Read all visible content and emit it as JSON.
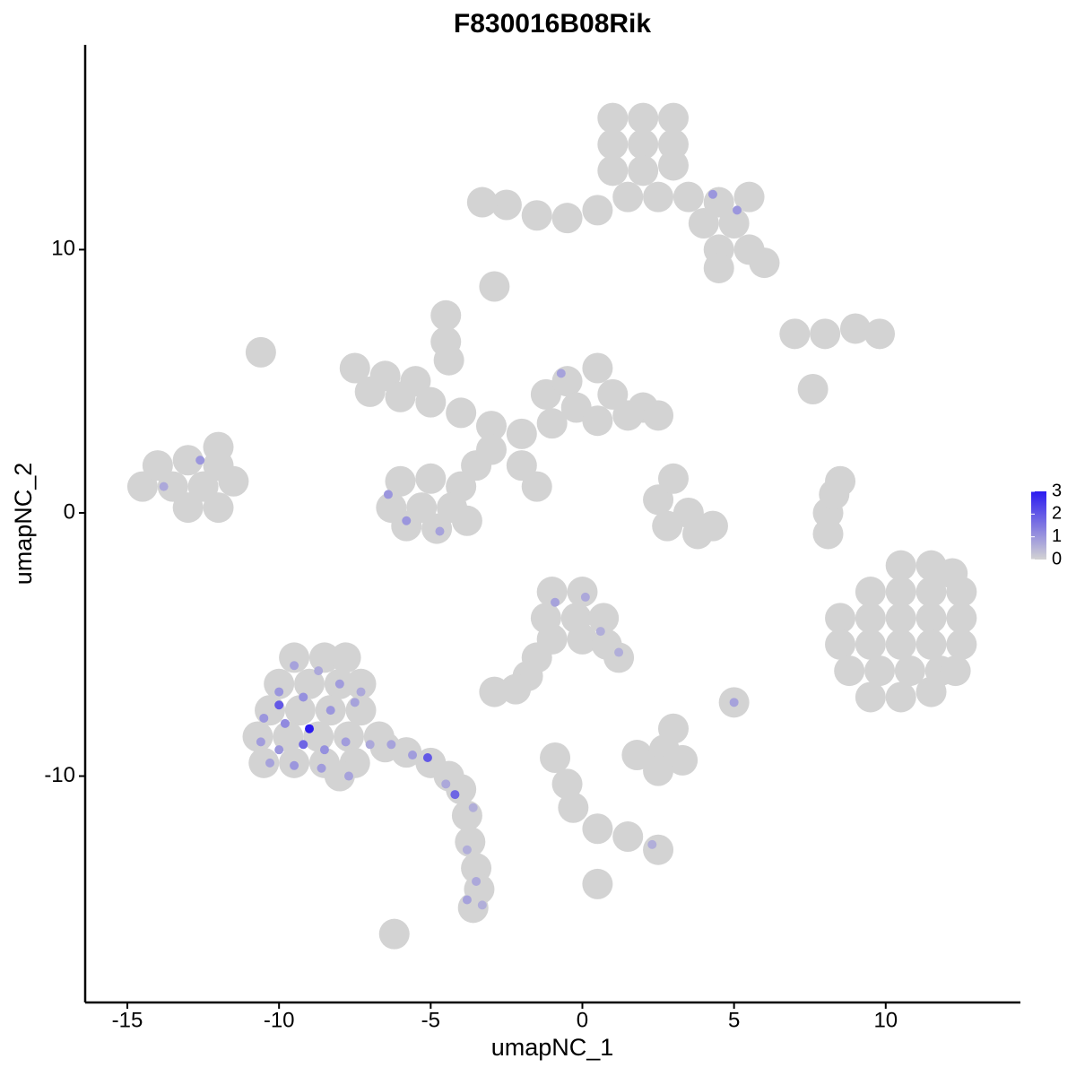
{
  "chart_data": {
    "type": "scatter",
    "title": "F830016B08Rik",
    "xlabel": "umapNC_1",
    "ylabel": "umapNC_2",
    "xlim": [
      -16.39,
      14.44
    ],
    "ylim": [
      -18.6,
      17.78
    ],
    "xticks": [
      -15,
      -10,
      -5,
      0,
      5,
      10
    ],
    "yticks": [
      -10,
      0,
      10
    ],
    "colors": [
      "#d3d3d3",
      "#2b1bf0"
    ],
    "clim": [
      0,
      3
    ],
    "colorbar_ticks": [
      0,
      1,
      2,
      3
    ],
    "grid": false,
    "x": [
      1,
      2,
      3,
      1,
      2,
      3,
      1,
      2,
      3,
      1.5,
      2.5,
      3.5,
      4.5,
      5.5,
      4,
      5,
      4.5,
      5.5,
      6,
      4.5,
      0.5,
      -0.5,
      -1.5,
      -2.5,
      -3.3,
      -7.5,
      -6.5,
      -5.5,
      -7,
      -6,
      -5,
      -4,
      -3,
      -2,
      -1.2,
      -0.5,
      0.5,
      -0.2,
      1,
      2,
      2.5,
      1.5,
      0.5,
      -1,
      -6,
      -5,
      -4,
      -6.3,
      -5.3,
      -4.3,
      -5.8,
      -4.8,
      -3.8,
      -3.5,
      -3,
      -4.5,
      -4.4,
      -2,
      -1.5,
      -14.5,
      -13.5,
      -12.5,
      -11.5,
      -14,
      -13,
      -12,
      -12,
      -13,
      -12,
      7,
      8,
      9,
      9.8,
      7.6,
      2.5,
      3.5,
      2.8,
      3.8,
      4.3,
      3,
      8.1,
      8.1,
      8.3,
      8.5,
      10.5,
      11.5,
      12.2,
      9.5,
      10.5,
      11.5,
      12.5,
      8.5,
      9.5,
      10.5,
      11.5,
      12.5,
      8.5,
      9.5,
      10.5,
      11.5,
      12.5,
      8.8,
      9.8,
      10.8,
      11.8,
      12.3,
      9.5,
      10.5,
      11.5,
      -1,
      0,
      -1.2,
      -0.2,
      0.7,
      -1,
      0,
      0.8,
      1.2,
      -1.5,
      -1.8,
      -2.2,
      -2.9,
      -9.5,
      -8.5,
      -7.8,
      -10,
      -9,
      -8,
      -7.3,
      -10.3,
      -9.3,
      -8.3,
      -7.3,
      -10.7,
      -9.7,
      -8.7,
      -7.7,
      -6.7,
      -10.5,
      -9.5,
      -8.5,
      -7.5,
      -8,
      -6.5,
      -5.8,
      -5,
      -4.4,
      -4,
      -3.8,
      -3.7,
      -3.5,
      -3.4,
      -3.6,
      1.8,
      2.7,
      3.3,
      2.5,
      3,
      -0.9,
      -0.5,
      -0.3,
      0.5,
      1.5,
      2.5,
      0.5,
      -6.2,
      -2.9,
      -10.6,
      -4.5,
      5,
      4.3,
      5.1,
      -6.4,
      -5.8,
      -4.7,
      -0.7,
      -12.6,
      -13.8,
      -0.9,
      0.1,
      0.6,
      1.2,
      5,
      2.3,
      -10,
      -9.5,
      -8.7,
      -8,
      -10.5,
      -9.8,
      -9,
      -8.3,
      -7.5,
      -10.6,
      -10,
      -9.2,
      -8.5,
      -7.8,
      -7,
      -10.3,
      -9.5,
      -8.6,
      -7.7,
      -10,
      -6.3,
      -5.6,
      -5.1,
      -4.5,
      -4.2,
      -3.6,
      -3.8,
      -3.5,
      -3.8,
      -3.3,
      -7.3,
      -9.2
    ],
    "y": [
      15,
      15,
      15,
      14,
      14,
      14,
      13,
      13,
      13.2,
      12,
      12,
      12,
      11.8,
      12,
      11,
      11,
      10,
      10,
      9.5,
      9.3,
      11.5,
      11.2,
      11.3,
      11.7,
      11.8,
      5.5,
      5.2,
      5,
      4.6,
      4.4,
      4.2,
      3.8,
      3.3,
      3,
      4.5,
      5,
      5.5,
      4,
      4.5,
      4,
      3.7,
      3.7,
      3.5,
      3.4,
      1.2,
      1.3,
      1,
      0.2,
      0.2,
      0.2,
      -0.5,
      -0.6,
      -0.3,
      1.8,
      2.4,
      6.5,
      5.8,
      1.8,
      1,
      1,
      1,
      1,
      1.2,
      1.8,
      2,
      1.8,
      2.5,
      0.2,
      0.2,
      6.8,
      6.8,
      7,
      6.8,
      4.7,
      0.5,
      0,
      -0.5,
      -0.8,
      -0.5,
      1.3,
      -0.8,
      0,
      0.7,
      1.2,
      -2,
      -2,
      -2.3,
      -3,
      -3,
      -3,
      -3,
      -4,
      -4,
      -4,
      -4,
      -4,
      -5,
      -5,
      -5,
      -5,
      -5,
      -6,
      -6,
      -6,
      -6,
      -6,
      -7,
      -7,
      -6.8,
      -3,
      -3,
      -4,
      -4,
      -4,
      -4.8,
      -4.8,
      -5,
      -5.5,
      -5.5,
      -6.2,
      -6.7,
      -6.8,
      -5.5,
      -5.5,
      -5.5,
      -6.5,
      -6.5,
      -6.5,
      -6.5,
      -7.5,
      -7.5,
      -7.5,
      -7.5,
      -8.5,
      -8.5,
      -8.5,
      -8.5,
      -8.5,
      -9.5,
      -9.5,
      -9.5,
      -9.5,
      -10,
      -8.9,
      -9.1,
      -9.5,
      -10,
      -10.5,
      -11.5,
      -12.5,
      -13.5,
      -14.3,
      -15,
      -9.2,
      -9,
      -9.4,
      -9.8,
      -8.2,
      -9.3,
      -10.3,
      -11.2,
      -12,
      -12.3,
      -12.8,
      -14.1,
      -16,
      8.6,
      6.1,
      7.5,
      -7.2,
      12.1,
      11.5,
      0.7,
      -0.3,
      -0.7,
      5.3,
      2,
      1,
      -3.4,
      -3.2,
      -4.5,
      -5.3,
      -7.2,
      -12.6,
      -6.8,
      -5.8,
      -6,
      -6.5,
      -7.8,
      -8,
      -8.2,
      -7.5,
      -7.2,
      -8.7,
      -9,
      -8.8,
      -9,
      -8.7,
      -8.8,
      -9.5,
      -9.6,
      -9.7,
      -10,
      -7.3,
      -8.8,
      -9.2,
      -9.3,
      -10.3,
      -10.7,
      -11.2,
      -12.8,
      -14,
      -14.7,
      -14.9,
      -6.8,
      -7
    ],
    "values": [
      0,
      0,
      0,
      0,
      0,
      0,
      0,
      0,
      0,
      0,
      0,
      0,
      0,
      0,
      0,
      0,
      0,
      0,
      0,
      0,
      0,
      0,
      0,
      0,
      0,
      0,
      0,
      0,
      0,
      0,
      0,
      0,
      0,
      0,
      0,
      0,
      0,
      0,
      0,
      0,
      0,
      0,
      0,
      0,
      0,
      0,
      0,
      0,
      0,
      0,
      0,
      0,
      0,
      0,
      0,
      0,
      0,
      0,
      0,
      0,
      0,
      0,
      0,
      0,
      0,
      0,
      0,
      0,
      0,
      0,
      0,
      0,
      0,
      0,
      0,
      0,
      0,
      0,
      0,
      0,
      0,
      0,
      0,
      0,
      0,
      0,
      0,
      0,
      0,
      0,
      0,
      0,
      0,
      0,
      0,
      0,
      0,
      0,
      0,
      0,
      0,
      0,
      0,
      0,
      0,
      0,
      0,
      0,
      0,
      0,
      0,
      0,
      0,
      0,
      0,
      0,
      0,
      0,
      0,
      0,
      0,
      0,
      0,
      0,
      0,
      0,
      0,
      0,
      0,
      0,
      0,
      0,
      0,
      0,
      0,
      0,
      0,
      0,
      0,
      0,
      0,
      0,
      0,
      0,
      0,
      0,
      0,
      0,
      0,
      0,
      0,
      0,
      0,
      0,
      0,
      0,
      0,
      0,
      0,
      0,
      0,
      0,
      0,
      0,
      0,
      0,
      0,
      0,
      0,
      0,
      1,
      1,
      1,
      1,
      0.8,
      0.8,
      1,
      0.7,
      0.8,
      0.7,
      0.6,
      0.6,
      0.8,
      0.6,
      1,
      0.8,
      0.7,
      0.9,
      1,
      1.2,
      3,
      1,
      0.8,
      0.9,
      1,
      1.8,
      1.1,
      0.9,
      0.7,
      0.8,
      1,
      0.9,
      0.8,
      2,
      0.8,
      0.9,
      2,
      0.7,
      1.8,
      0.6,
      0.6,
      0.7,
      0.8,
      0.6,
      0.7,
      1.1
    ]
  }
}
